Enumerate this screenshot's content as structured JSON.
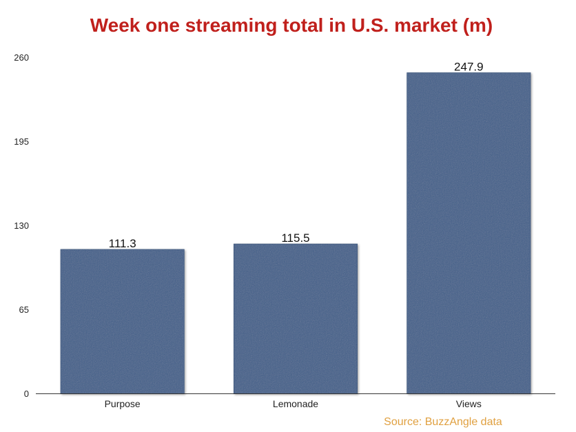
{
  "colors": {
    "title": "#c0201c",
    "bar": "#3f5f8a",
    "bar_edge": "#2f4a70",
    "axis": "#333333",
    "source": "#e0a040"
  },
  "source_text": "Source: BuzzAngle data",
  "chart_data": {
    "type": "bar",
    "title": "Week one streaming total in U.S. market (m)",
    "xlabel": "",
    "ylabel": "",
    "categories": [
      "Purpose",
      "Lemonade",
      "Views"
    ],
    "values": [
      111.3,
      115.5,
      247.9
    ],
    "value_labels": [
      "111.3",
      "115.5",
      "247.9"
    ],
    "ylim": [
      0,
      260
    ],
    "yticks": [
      0,
      65,
      130,
      195,
      260
    ],
    "ytick_labels": [
      "0",
      "65",
      "130",
      "195",
      "260"
    ],
    "grid": false,
    "legend": "none"
  }
}
